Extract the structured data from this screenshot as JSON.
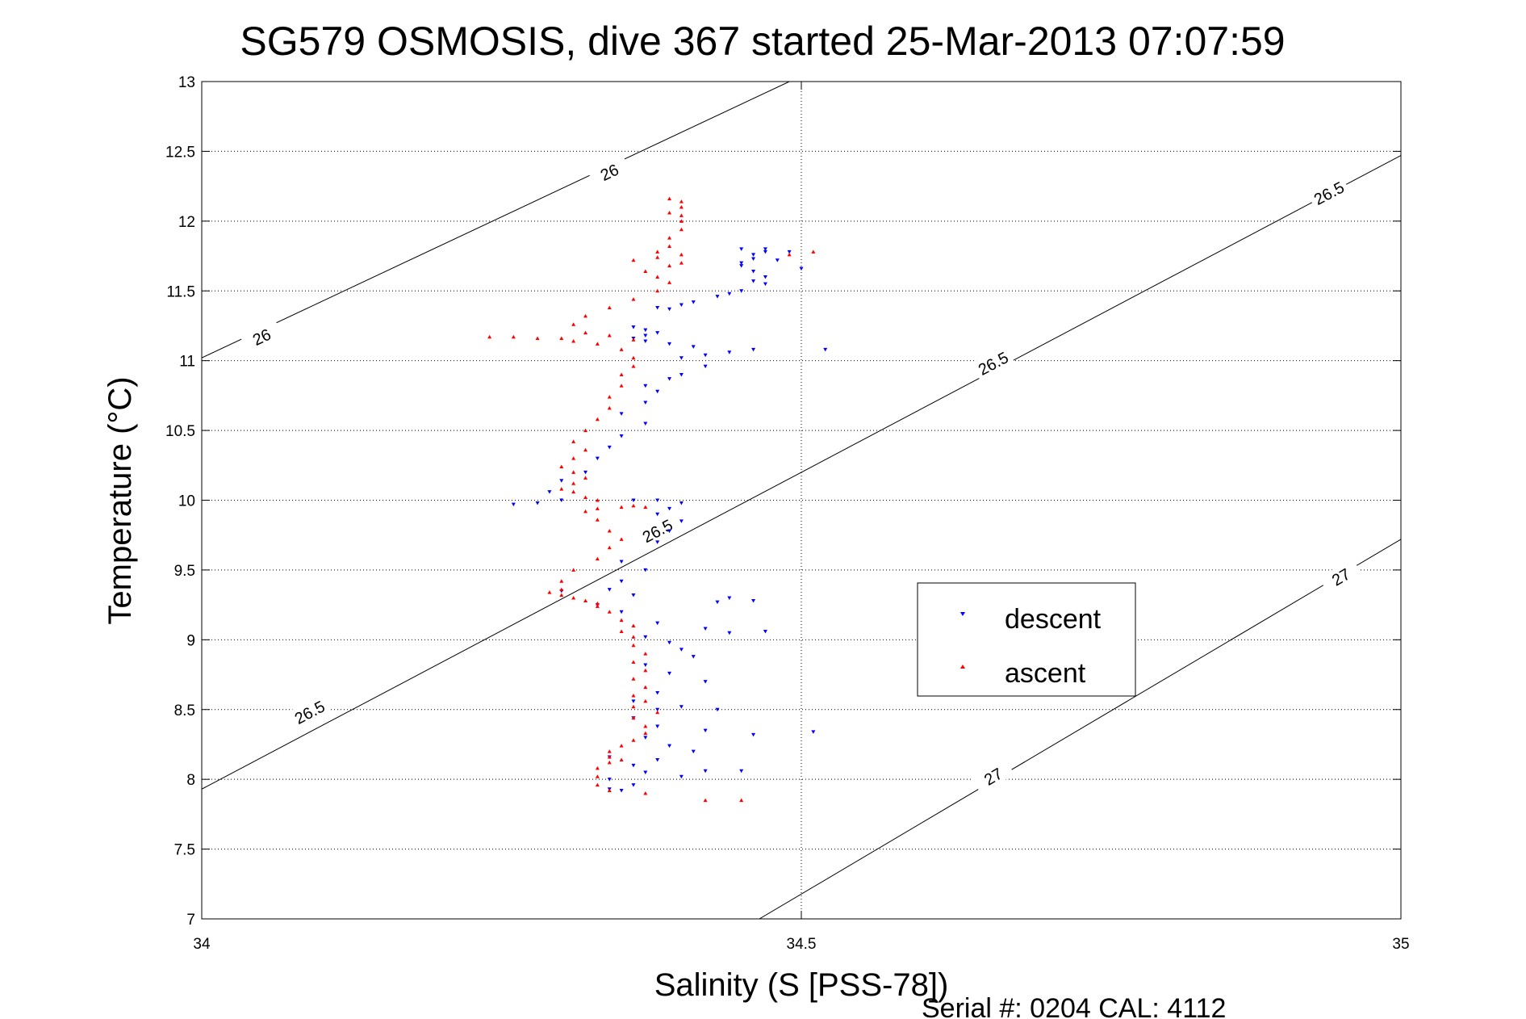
{
  "chart_data": {
    "type": "scatter",
    "title": "SG579 OSMOSIS, dive 367 started 25-Mar-2013 07:07:59",
    "xlabel": "Salinity (S [PSS-78])",
    "ylabel": "Temperature (°C)",
    "xlim": [
      34,
      35
    ],
    "ylim": [
      7,
      13
    ],
    "xticks": [
      "34",
      "34.5",
      "35"
    ],
    "yticks": [
      "7",
      "7.5",
      "8",
      "8.5",
      "9",
      "9.5",
      "10",
      "10.5",
      "11",
      "11.5",
      "12",
      "12.5",
      "13"
    ],
    "grid": true,
    "legend_position": "lower-right",
    "density_contours": [
      {
        "sigma": 26.0,
        "label": "26",
        "start": [
          34.0,
          11.02
        ],
        "end": [
          34.49,
          13.0
        ]
      },
      {
        "sigma": 26.5,
        "label": "26.5",
        "start": [
          34.0,
          7.93
        ],
        "end": [
          35.0,
          12.47
        ]
      },
      {
        "sigma": 27.0,
        "label": "27",
        "start": [
          34.465,
          7.0
        ],
        "end": [
          35.0,
          9.72
        ]
      }
    ],
    "contour_labels": [
      {
        "text": "26",
        "x": 34.34,
        "y": 12.35
      },
      {
        "text": "26",
        "x": 34.05,
        "y": 11.17
      },
      {
        "text": "26.5",
        "x": 34.94,
        "y": 12.2
      },
      {
        "text": "26.5",
        "x": 34.66,
        "y": 10.98
      },
      {
        "text": "26.5",
        "x": 34.38,
        "y": 9.78
      },
      {
        "text": "26.5",
        "x": 34.09,
        "y": 8.48
      },
      {
        "text": "27",
        "x": 34.95,
        "y": 9.45
      },
      {
        "text": "27",
        "x": 34.66,
        "y": 8.02
      }
    ],
    "series": [
      {
        "name": "descent",
        "color": "#0000ff",
        "marker": "triangle-down",
        "points": [
          [
            34.35,
            7.92
          ],
          [
            34.34,
            7.93
          ],
          [
            34.36,
            7.96
          ],
          [
            34.34,
            8.0
          ],
          [
            34.37,
            8.05
          ],
          [
            34.4,
            8.02
          ],
          [
            34.42,
            8.06
          ],
          [
            34.45,
            8.06
          ],
          [
            34.36,
            8.1
          ],
          [
            34.38,
            8.14
          ],
          [
            34.34,
            8.16
          ],
          [
            34.41,
            8.2
          ],
          [
            34.39,
            8.24
          ],
          [
            34.37,
            8.3
          ],
          [
            34.42,
            8.35
          ],
          [
            34.46,
            8.32
          ],
          [
            34.51,
            8.34
          ],
          [
            34.38,
            8.38
          ],
          [
            34.36,
            8.44
          ],
          [
            34.38,
            8.5
          ],
          [
            34.4,
            8.52
          ],
          [
            34.43,
            8.5
          ],
          [
            34.36,
            8.56
          ],
          [
            34.38,
            8.62
          ],
          [
            34.42,
            8.7
          ],
          [
            34.39,
            8.76
          ],
          [
            34.37,
            8.82
          ],
          [
            34.41,
            8.88
          ],
          [
            34.4,
            8.93
          ],
          [
            34.39,
            8.98
          ],
          [
            34.37,
            9.02
          ],
          [
            34.44,
            9.05
          ],
          [
            34.47,
            9.06
          ],
          [
            34.42,
            9.08
          ],
          [
            34.38,
            9.12
          ],
          [
            34.35,
            9.2
          ],
          [
            34.33,
            9.25
          ],
          [
            34.43,
            9.27
          ],
          [
            34.46,
            9.28
          ],
          [
            34.44,
            9.3
          ],
          [
            34.36,
            9.32
          ],
          [
            34.34,
            9.36
          ],
          [
            34.3,
            9.35
          ],
          [
            34.35,
            9.42
          ],
          [
            34.37,
            9.5
          ],
          [
            34.35,
            9.56
          ],
          [
            34.38,
            9.7
          ],
          [
            34.39,
            9.78
          ],
          [
            34.4,
            9.85
          ],
          [
            34.38,
            9.9
          ],
          [
            34.39,
            9.94
          ],
          [
            34.4,
            9.98
          ],
          [
            34.38,
            10.0
          ],
          [
            34.36,
            10.0
          ],
          [
            34.3,
            10.0
          ],
          [
            34.28,
            9.98
          ],
          [
            34.26,
            9.97
          ],
          [
            34.29,
            10.06
          ],
          [
            34.3,
            10.14
          ],
          [
            34.32,
            10.2
          ],
          [
            34.33,
            10.3
          ],
          [
            34.34,
            10.38
          ],
          [
            34.35,
            10.46
          ],
          [
            34.37,
            10.55
          ],
          [
            34.35,
            10.62
          ],
          [
            34.37,
            10.7
          ],
          [
            34.38,
            10.78
          ],
          [
            34.37,
            10.82
          ],
          [
            34.39,
            10.87
          ],
          [
            34.4,
            10.9
          ],
          [
            34.42,
            10.96
          ],
          [
            34.4,
            11.02
          ],
          [
            34.42,
            11.04
          ],
          [
            34.44,
            11.06
          ],
          [
            34.46,
            11.08
          ],
          [
            34.41,
            11.1
          ],
          [
            34.39,
            11.12
          ],
          [
            34.37,
            11.14
          ],
          [
            34.36,
            11.16
          ],
          [
            34.37,
            11.18
          ],
          [
            34.38,
            11.2
          ],
          [
            34.37,
            11.22
          ],
          [
            34.36,
            11.24
          ],
          [
            34.52,
            11.08
          ],
          [
            34.39,
            11.37
          ],
          [
            34.38,
            11.38
          ],
          [
            34.4,
            11.4
          ],
          [
            34.41,
            11.42
          ],
          [
            34.43,
            11.46
          ],
          [
            34.44,
            11.48
          ],
          [
            34.45,
            11.5
          ],
          [
            34.47,
            11.55
          ],
          [
            34.46,
            11.57
          ],
          [
            34.47,
            11.6
          ],
          [
            34.46,
            11.64
          ],
          [
            34.45,
            11.68
          ],
          [
            34.45,
            11.7
          ],
          [
            34.46,
            11.73
          ],
          [
            34.46,
            11.76
          ],
          [
            34.47,
            11.78
          ],
          [
            34.45,
            11.8
          ],
          [
            34.47,
            11.8
          ],
          [
            34.48,
            11.72
          ],
          [
            34.49,
            11.78
          ],
          [
            34.5,
            11.66
          ]
        ]
      },
      {
        "name": "ascent",
        "color": "#ff0000",
        "marker": "triangle-up",
        "points": [
          [
            34.42,
            7.85
          ],
          [
            34.45,
            7.85
          ],
          [
            34.37,
            7.9
          ],
          [
            34.34,
            7.92
          ],
          [
            34.33,
            7.96
          ],
          [
            34.33,
            8.02
          ],
          [
            34.33,
            8.08
          ],
          [
            34.34,
            8.12
          ],
          [
            34.35,
            8.14
          ],
          [
            34.34,
            8.16
          ],
          [
            34.34,
            8.2
          ],
          [
            34.35,
            8.24
          ],
          [
            34.36,
            8.28
          ],
          [
            34.37,
            8.33
          ],
          [
            34.37,
            8.38
          ],
          [
            34.36,
            8.44
          ],
          [
            34.38,
            8.48
          ],
          [
            34.36,
            8.52
          ],
          [
            34.37,
            8.56
          ],
          [
            34.36,
            8.6
          ],
          [
            34.37,
            8.66
          ],
          [
            34.36,
            8.72
          ],
          [
            34.37,
            8.78
          ],
          [
            34.36,
            8.84
          ],
          [
            34.37,
            8.9
          ],
          [
            34.36,
            8.96
          ],
          [
            34.36,
            9.02
          ],
          [
            34.35,
            9.06
          ],
          [
            34.36,
            9.1
          ],
          [
            34.35,
            9.14
          ],
          [
            34.34,
            9.2
          ],
          [
            34.33,
            9.24
          ],
          [
            34.33,
            9.26
          ],
          [
            34.32,
            9.28
          ],
          [
            34.31,
            9.3
          ],
          [
            34.3,
            9.32
          ],
          [
            34.29,
            9.34
          ],
          [
            34.3,
            9.36
          ],
          [
            34.3,
            9.42
          ],
          [
            34.31,
            9.5
          ],
          [
            34.33,
            9.58
          ],
          [
            34.34,
            9.66
          ],
          [
            34.35,
            9.72
          ],
          [
            34.34,
            9.78
          ],
          [
            34.33,
            9.86
          ],
          [
            34.32,
            9.92
          ],
          [
            34.33,
            9.94
          ],
          [
            34.35,
            9.95
          ],
          [
            34.36,
            9.96
          ],
          [
            34.37,
            9.95
          ],
          [
            34.33,
            10.0
          ],
          [
            34.32,
            10.02
          ],
          [
            34.31,
            10.06
          ],
          [
            34.3,
            10.08
          ],
          [
            34.31,
            10.12
          ],
          [
            34.32,
            10.16
          ],
          [
            34.31,
            10.2
          ],
          [
            34.3,
            10.24
          ],
          [
            34.31,
            10.3
          ],
          [
            34.32,
            10.36
          ],
          [
            34.31,
            10.42
          ],
          [
            34.32,
            10.5
          ],
          [
            34.33,
            10.58
          ],
          [
            34.34,
            10.66
          ],
          [
            34.34,
            10.74
          ],
          [
            34.35,
            10.82
          ],
          [
            34.35,
            10.9
          ],
          [
            34.36,
            10.96
          ],
          [
            34.36,
            11.02
          ],
          [
            34.35,
            11.08
          ],
          [
            34.33,
            11.12
          ],
          [
            34.31,
            11.14
          ],
          [
            34.28,
            11.16
          ],
          [
            34.24,
            11.17
          ],
          [
            34.26,
            11.17
          ],
          [
            34.3,
            11.16
          ],
          [
            34.34,
            11.18
          ],
          [
            34.36,
            11.15
          ],
          [
            34.32,
            11.2
          ],
          [
            34.31,
            11.26
          ],
          [
            34.32,
            11.32
          ],
          [
            34.34,
            11.38
          ],
          [
            34.36,
            11.44
          ],
          [
            34.38,
            11.5
          ],
          [
            34.39,
            11.56
          ],
          [
            34.38,
            11.6
          ],
          [
            34.37,
            11.64
          ],
          [
            34.39,
            11.68
          ],
          [
            34.4,
            11.7
          ],
          [
            34.36,
            11.72
          ],
          [
            34.38,
            11.74
          ],
          [
            34.4,
            11.76
          ],
          [
            34.38,
            11.78
          ],
          [
            34.39,
            11.82
          ],
          [
            34.39,
            11.88
          ],
          [
            34.4,
            11.94
          ],
          [
            34.4,
            12.0
          ],
          [
            34.4,
            12.04
          ],
          [
            34.39,
            12.06
          ],
          [
            34.4,
            12.1
          ],
          [
            34.4,
            12.14
          ],
          [
            34.39,
            12.16
          ],
          [
            34.51,
            11.78
          ],
          [
            34.49,
            11.76
          ]
        ]
      }
    ]
  },
  "footer": {
    "serial": "Serial #: 0204  CAL: 4112"
  }
}
